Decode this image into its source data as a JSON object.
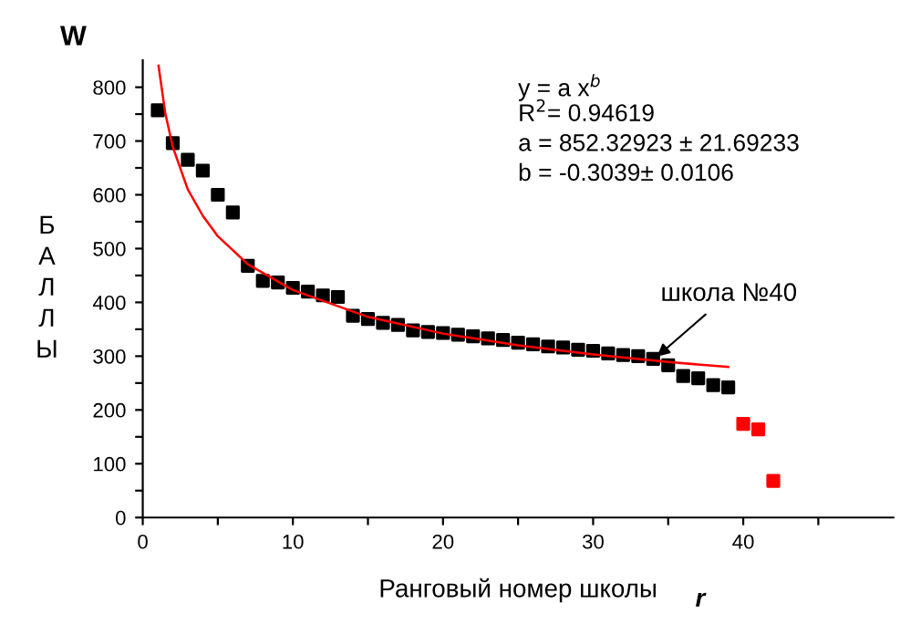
{
  "chart_data": {
    "type": "scatter",
    "title": "W",
    "xlabel": "Ранговый номер школы",
    "ylabel": "БАЛЛЫ",
    "xlim": [
      0,
      50
    ],
    "ylim": [
      0,
      850
    ],
    "xticks": [
      0,
      {
        "value": 5,
        "label": null
      },
      10,
      {
        "value": 15,
        "label": null
      },
      20,
      {
        "value": 25,
        "label": null
      },
      30,
      {
        "value": 35,
        "label": null
      },
      40,
      {
        "value": 45,
        "label": null
      }
    ],
    "yticks": [
      0,
      {
        "value": 50,
        "label": null
      },
      100,
      {
        "value": 150,
        "label": null
      },
      200,
      {
        "value": 250,
        "label": null
      },
      300,
      {
        "value": 350,
        "label": null
      },
      400,
      {
        "value": 450,
        "label": null
      },
      500,
      {
        "value": 550,
        "label": null
      },
      600,
      {
        "value": 650,
        "label": null
      },
      700,
      {
        "value": 750,
        "label": null
      },
      800
    ],
    "marker": "square",
    "grid": false,
    "legend": false,
    "series": [
      {
        "color": "#000000",
        "x": [
          1,
          2,
          3,
          4,
          5,
          6,
          7,
          8,
          9,
          10,
          11,
          12,
          13,
          14,
          15,
          16,
          17,
          18,
          19,
          20,
          21,
          22,
          23,
          24,
          25,
          26,
          27,
          28,
          29,
          30,
          31,
          32,
          33,
          34,
          35,
          36,
          37,
          38,
          39
        ],
        "values": [
          757,
          696,
          665,
          645,
          600,
          567,
          468,
          440,
          437,
          427,
          420,
          413,
          410,
          375,
          369,
          362,
          358,
          348,
          345,
          343,
          340,
          337,
          333,
          330,
          325,
          322,
          318,
          316,
          312,
          310,
          305,
          302,
          300,
          295,
          283,
          263,
          259,
          246,
          242
        ]
      },
      {
        "color": "#ff0000",
        "x": [
          40,
          41,
          42
        ],
        "values": [
          174,
          164,
          68
        ]
      },
      {
        "type": "line",
        "marker": "none",
        "color": "#ff0000",
        "x": [
          1.05,
          1.5,
          2,
          3,
          4,
          5,
          7,
          10,
          15,
          20,
          25,
          30,
          35,
          39
        ],
        "values": [
          840,
          752,
          689,
          610,
          561,
          523,
          471,
          423,
          373,
          342,
          320,
          303,
          289,
          280
        ]
      }
    ],
    "annotations": [
      "y = a x$^{b}$",
      "R$^{2}$= 0.94619",
      "a = 852.32923 ± 21.69233",
      "b = -0.3039± 0.0106",
      "r",
      {
        "text": "школа №40",
        "x": 34,
        "y": 293
      }
    ]
  }
}
